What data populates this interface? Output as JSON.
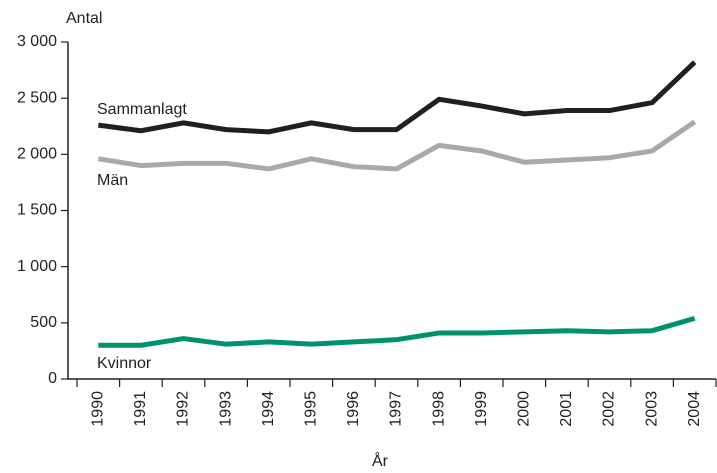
{
  "chart_data": {
    "type": "line",
    "y_label": "Antal",
    "x_label": "År",
    "categories": [
      "1990",
      "1991",
      "1992",
      "1993",
      "1994",
      "1995",
      "1996",
      "1997",
      "1998",
      "1999",
      "2000",
      "2001",
      "2002",
      "2003",
      "2004"
    ],
    "series": [
      {
        "name": "Sammanlagt",
        "color": "#231f20",
        "values": [
          2260,
          2210,
          2280,
          2220,
          2200,
          2280,
          2220,
          2220,
          2490,
          2430,
          2360,
          2390,
          2390,
          2460,
          2820
        ]
      },
      {
        "name": "Män",
        "color": "#a7a9ac",
        "values": [
          1960,
          1900,
          1920,
          1920,
          1870,
          1960,
          1890,
          1870,
          2080,
          2030,
          1930,
          1950,
          1970,
          2030,
          2290
        ]
      },
      {
        "name": "Kvinnor",
        "color": "#00936b",
        "values": [
          300,
          300,
          360,
          310,
          330,
          310,
          330,
          350,
          410,
          410,
          420,
          430,
          420,
          430,
          540
        ]
      }
    ],
    "ylim": [
      0,
      3000
    ],
    "yticks": [
      0,
      500,
      {
        "value": 1000,
        "label": "1 000"
      },
      {
        "value": 1500,
        "label": "1 500"
      },
      {
        "value": 2000,
        "label": "2 000"
      },
      {
        "value": 2500,
        "label": "2 500"
      },
      {
        "value": 3000,
        "label": "3 000"
      }
    ],
    "grid": false
  }
}
